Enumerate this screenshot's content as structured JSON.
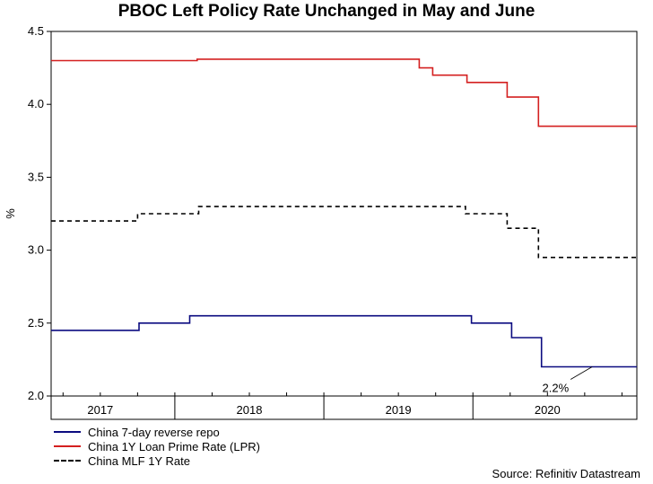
{
  "chart_data": {
    "type": "line",
    "title": "PBOC Left Policy Rate Unchanged in May and June",
    "ylabel": "%",
    "xlabel": "",
    "ylim": [
      2.0,
      4.5
    ],
    "xlim": [
      2016.67,
      2020.6
    ],
    "yticks": [
      "2.0",
      "2.5",
      "3.0",
      "3.5",
      "4.0",
      "4.5"
    ],
    "xticks": [
      {
        "label": "2017",
        "center": 2017.0
      },
      {
        "label": "2018",
        "center": 2018.0
      },
      {
        "label": "2019",
        "center": 2019.0
      },
      {
        "label": "2020",
        "center": 2020.0
      }
    ],
    "grid": false,
    "series": [
      {
        "name": "China 7-day reverse repo",
        "color": "#0b0b80",
        "style": "solid",
        "points": [
          [
            2016.67,
            2.45
          ],
          [
            2017.26,
            2.45
          ],
          [
            2017.26,
            2.5
          ],
          [
            2017.6,
            2.5
          ],
          [
            2017.6,
            2.55
          ],
          [
            2019.49,
            2.55
          ],
          [
            2019.49,
            2.5
          ],
          [
            2019.76,
            2.5
          ],
          [
            2019.76,
            2.4
          ],
          [
            2019.96,
            2.4
          ],
          [
            2019.96,
            2.2
          ],
          [
            2020.6,
            2.2
          ]
        ]
      },
      {
        "name": "China 1Y Loan Prime Rate (LPR)",
        "color": "#d42020",
        "style": "solid",
        "points": [
          [
            2016.67,
            4.3
          ],
          [
            2017.65,
            4.3
          ],
          [
            2017.65,
            4.31
          ],
          [
            2019.14,
            4.31
          ],
          [
            2019.14,
            4.25
          ],
          [
            2019.23,
            4.25
          ],
          [
            2019.23,
            4.2
          ],
          [
            2019.46,
            4.2
          ],
          [
            2019.46,
            4.15
          ],
          [
            2019.73,
            4.15
          ],
          [
            2019.73,
            4.05
          ],
          [
            2019.94,
            4.05
          ],
          [
            2019.94,
            3.85
          ],
          [
            2020.6,
            3.85
          ]
        ]
      },
      {
        "name": "China MLF 1Y Rate",
        "color": "#000000",
        "style": "dashed",
        "points": [
          [
            2016.67,
            3.2
          ],
          [
            2017.25,
            3.2
          ],
          [
            2017.25,
            3.25
          ],
          [
            2017.66,
            3.25
          ],
          [
            2017.66,
            3.3
          ],
          [
            2019.45,
            3.3
          ],
          [
            2019.45,
            3.25
          ],
          [
            2019.73,
            3.25
          ],
          [
            2019.73,
            3.15
          ],
          [
            2019.94,
            3.15
          ],
          [
            2019.94,
            2.95
          ],
          [
            2020.6,
            2.95
          ]
        ]
      }
    ],
    "annotation": {
      "text": "2.2%",
      "x": 2020.3,
      "y": 2.2
    }
  },
  "source": "Source: Refinitiv Datastream"
}
